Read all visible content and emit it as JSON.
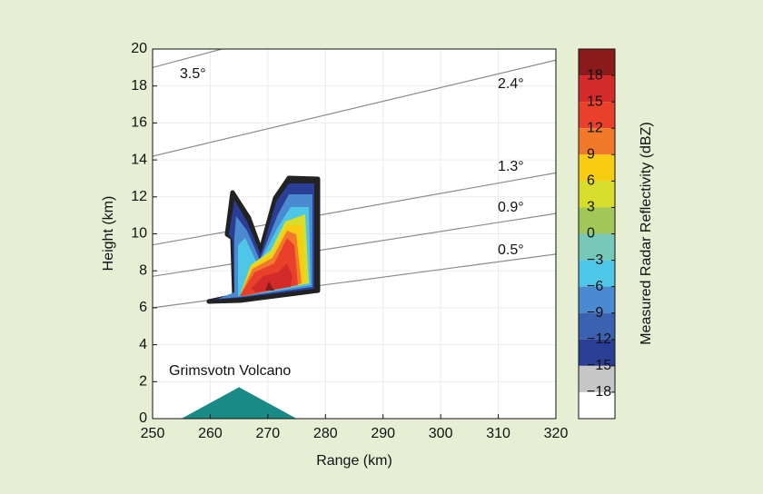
{
  "chart_data": {
    "type": "contour",
    "xlabel": "Range (km)",
    "ylabel": "Height (km)",
    "xlim": [
      250,
      320
    ],
    "xticks": [
      250,
      260,
      270,
      280,
      290,
      300,
      310,
      320
    ],
    "ylim": [
      0,
      20
    ],
    "yticks": [
      0,
      2,
      4,
      6,
      8,
      10,
      12,
      14,
      16,
      18,
      20
    ],
    "grid": true,
    "beams": [
      {
        "name": "0.5°",
        "x": [
          250,
          320
        ],
        "values": [
          6.0,
          8.9
        ]
      },
      {
        "name": "0.9°",
        "x": [
          250,
          320
        ],
        "values": [
          7.7,
          11.1
        ]
      },
      {
        "name": "1.3°",
        "x": [
          250,
          320
        ],
        "values": [
          9.4,
          13.3
        ]
      },
      {
        "name": "2.4°",
        "x": [
          250,
          320
        ],
        "values": [
          14.2,
          19.4
        ]
      },
      {
        "name": "3.5°",
        "x": [
          250,
          262
        ],
        "values": [
          19.0,
          20.0
        ]
      }
    ],
    "beam_color": "#8c8c8c",
    "volcano": {
      "name": "Grimsvotn Volcano",
      "x": [
        255,
        265,
        275
      ],
      "values": [
        0,
        1.7,
        0
      ],
      "color": "#1a8a87"
    },
    "colorbar": {
      "label": "Measured Radar Reflectivity (dBZ)",
      "ticks": [
        18,
        15,
        12,
        9,
        6,
        3,
        0,
        {
          "value": -3,
          "label": "−3"
        },
        {
          "value": -6,
          "label": "−6"
        },
        {
          "value": -9,
          "label": "−9"
        },
        {
          "value": -12,
          "label": "−12"
        },
        {
          "value": -15,
          "label": "−15"
        },
        {
          "value": -18,
          "label": "−18"
        }
      ],
      "colors": [
        "#8b1a1a",
        "#d42a2a",
        "#e8402a",
        "#f07a2a",
        "#f8cc10",
        "#d8dc2a",
        "#a2c85a",
        "#76c8b8",
        "#4ec6e8",
        "#4a8ad0",
        "#3a62b0",
        "#2a3e96",
        "#c6c6c6",
        "#ffffff"
      ]
    }
  }
}
